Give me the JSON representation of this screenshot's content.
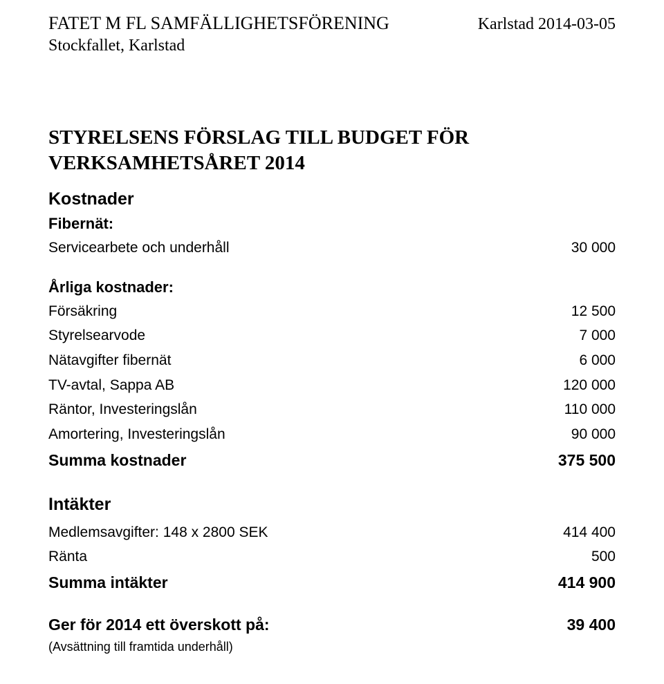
{
  "header": {
    "org_name": "FATET M FL SAMFÄLLIGHETSFÖRENING",
    "org_subloc": "Stockfallet, Karlstad",
    "date_loc": "Karlstad 2014-03-05"
  },
  "title_line1": "STYRELSENS FÖRSLAG TILL BUDGET FÖR",
  "title_line2": "VERKSAMHETSÅRET 2014",
  "kostnader_heading": "Kostnader",
  "fibernat_heading": "Fibernät:",
  "fibernat_rows": [
    {
      "label": "Servicearbete och underhåll",
      "value": "30 000"
    }
  ],
  "arliga_heading": "Årliga kostnader:",
  "arliga_rows": [
    {
      "label": "Försäkring",
      "value": "12 500"
    },
    {
      "label": "Styrelsearvode",
      "value": "7 000"
    },
    {
      "label": "Nätavgifter fibernät",
      "value": "6 000"
    },
    {
      "label": "TV-avtal, Sappa AB",
      "value": "120 000"
    },
    {
      "label": "Räntor, Investeringslån",
      "value": "110 000"
    },
    {
      "label": "Amortering, Investeringslån",
      "value": "90 000"
    }
  ],
  "summa_kostnader": {
    "label": "Summa kostnader",
    "value": "375 500"
  },
  "intakter_heading": "Intäkter",
  "intakter_rows": [
    {
      "label": "Medlemsavgifter: 148 x 2800 SEK",
      "value": "414 400"
    },
    {
      "label": "Ränta",
      "value": "500"
    }
  ],
  "summa_intakter": {
    "label": "Summa intäkter",
    "value": "414 900"
  },
  "overskott": {
    "label": "Ger för 2014 ett överskott på:",
    "value": "39 400"
  },
  "footnote": "(Avsättning till framtida underhåll)"
}
